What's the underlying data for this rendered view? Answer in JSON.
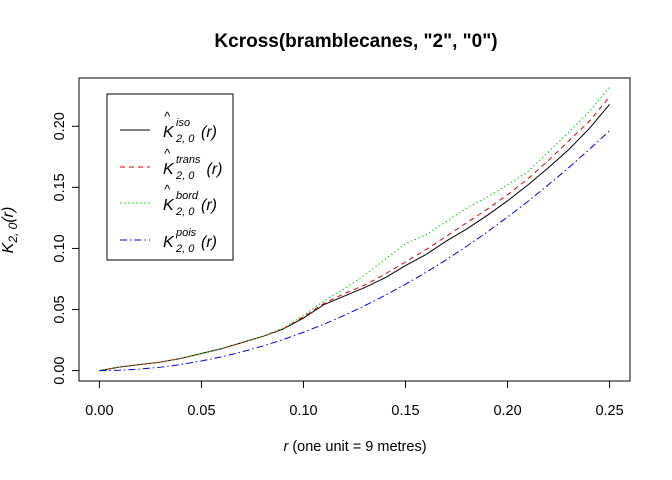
{
  "chart_data": {
    "type": "line",
    "title": "Kcross(bramblecanes, \"2\", \"0\")",
    "xlabel": {
      "var": "r",
      "rest": " (one unit = 9 metres)"
    },
    "ylabel": {
      "base": "K",
      "sub": "2, 0",
      "arg": "(r)"
    },
    "xlim": [
      -0.01,
      0.26
    ],
    "ylim": [
      -0.0085,
      0.2395
    ],
    "x_ticks": [
      "0.00",
      "0.05",
      "0.10",
      "0.15",
      "0.20",
      "0.25"
    ],
    "y_ticks": [
      "0.00",
      "0.05",
      "0.10",
      "0.15",
      "0.20"
    ],
    "grid": false,
    "legend_position": "top-left",
    "x": [
      0,
      0.01,
      0.02,
      0.03,
      0.04,
      0.05,
      0.06,
      0.07,
      0.08,
      0.09,
      0.1,
      0.11,
      0.12,
      0.13,
      0.14,
      0.15,
      0.16,
      0.17,
      0.18,
      0.19,
      0.2,
      0.21,
      0.22,
      0.23,
      0.24,
      0.25
    ],
    "series": [
      {
        "color": "#000000",
        "dash": "",
        "legend": {
          "hat": true,
          "base": "K",
          "sup": "iso",
          "sub": "2, 0",
          "arg": "(r)"
        },
        "values": [
          0,
          0.003,
          0.005,
          0.007,
          0.01,
          0.014,
          0.018,
          0.023,
          0.028,
          0.034,
          0.043,
          0.054,
          0.061,
          0.068,
          0.076,
          0.086,
          0.095,
          0.106,
          0.116,
          0.127,
          0.139,
          0.152,
          0.166,
          0.181,
          0.198,
          0.218
        ]
      },
      {
        "color": "#df0000",
        "dash": "5,4",
        "legend": {
          "hat": true,
          "base": "K",
          "sup": "trans",
          "sub": "2, 0",
          "arg": "(r)"
        },
        "values": [
          0,
          0.003,
          0.005,
          0.007,
          0.01,
          0.014,
          0.018,
          0.023,
          0.028,
          0.034,
          0.044,
          0.055,
          0.063,
          0.07,
          0.079,
          0.089,
          0.099,
          0.11,
          0.121,
          0.132,
          0.144,
          0.157,
          0.172,
          0.188,
          0.204,
          0.224
        ]
      },
      {
        "color": "#00cd00",
        "dash": "1.5,2.5",
        "legend": {
          "hat": true,
          "base": "K",
          "sup": "bord",
          "sub": "2, 0",
          "arg": "(r)"
        },
        "values": [
          0,
          0.003,
          0.005,
          0.007,
          0.01,
          0.014,
          0.018,
          0.023,
          0.028,
          0.035,
          0.045,
          0.057,
          0.067,
          0.078,
          0.091,
          0.104,
          0.111,
          0.122,
          0.133,
          0.142,
          0.152,
          0.163,
          0.179,
          0.195,
          0.212,
          0.232
        ]
      },
      {
        "color": "#0000ee",
        "dash": "7,3,1.5,3",
        "legend": {
          "hat": false,
          "base": "K",
          "sup": "pois",
          "sub": "2, 0",
          "arg": "(r)"
        },
        "values": [
          0,
          0.0003,
          0.0013,
          0.0028,
          0.005,
          0.0079,
          0.0113,
          0.0154,
          0.0201,
          0.0254,
          0.0314,
          0.038,
          0.0452,
          0.0531,
          0.0616,
          0.0707,
          0.0804,
          0.0908,
          0.1018,
          0.1134,
          0.1257,
          0.1385,
          0.1521,
          0.1662,
          0.181,
          0.1963
        ]
      }
    ]
  }
}
